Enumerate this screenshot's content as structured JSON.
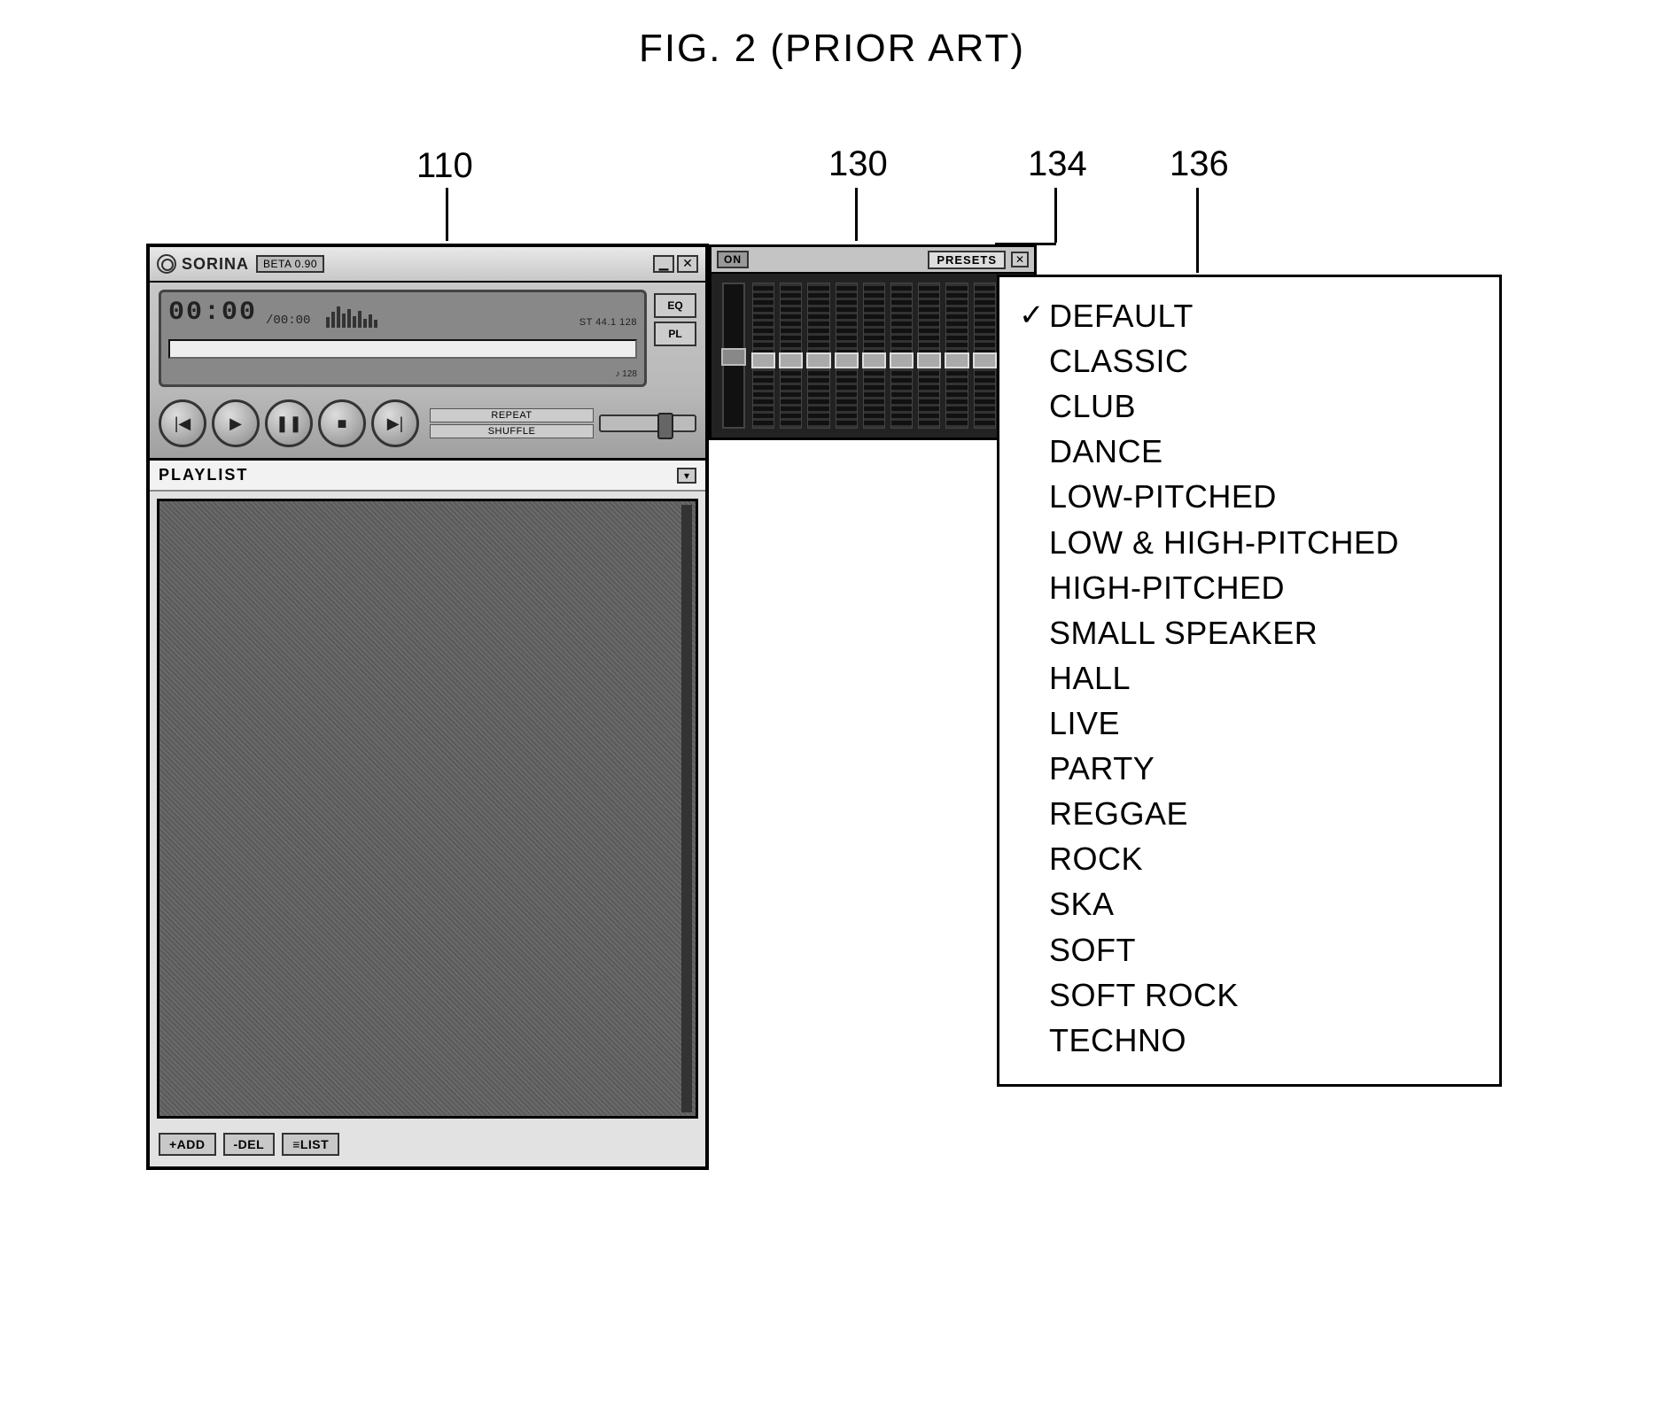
{
  "figure_title": "FIG. 2 (PRIOR ART)",
  "callouts": {
    "player": "110",
    "equalizer": "130",
    "presets_button": "134",
    "preset_menu": "136"
  },
  "player": {
    "brand": "SORINA",
    "version": "BETA 0.90",
    "minimize_glyph": "▁",
    "close_glyph": "✕",
    "time": "00:00",
    "total": "/00:00",
    "status": "ST 44.1 128",
    "sub": "♪ 128",
    "side_buttons": {
      "eq": "EQ",
      "pl": "PL"
    },
    "transport": {
      "prev": "|◀",
      "play": "▶",
      "pause": "❚❚",
      "stop": "■",
      "next": "▶|",
      "repeat_label": "REPEAT",
      "shuffle_label": "SHUFFLE"
    }
  },
  "playlist": {
    "title": "PLAYLIST",
    "collapse_glyph": "▾",
    "buttons": {
      "add": "+ADD",
      "del": "-DEL",
      "list": "≡LIST"
    }
  },
  "equalizer": {
    "on_label": "ON",
    "presets_label": "PRESETS",
    "close_glyph": "✕",
    "band_count": 10
  },
  "preset_menu": {
    "selected_index": 0,
    "check_glyph": "✓",
    "items": [
      "DEFAULT",
      "CLASSIC",
      "CLUB",
      "DANCE",
      "LOW-PITCHED",
      "LOW & HIGH-PITCHED",
      "HIGH-PITCHED",
      "SMALL SPEAKER",
      "HALL",
      "LIVE",
      "PARTY",
      "REGGAE",
      "ROCK",
      "SKA",
      "SOFT",
      "SOFT ROCK",
      "TECHNO"
    ]
  }
}
